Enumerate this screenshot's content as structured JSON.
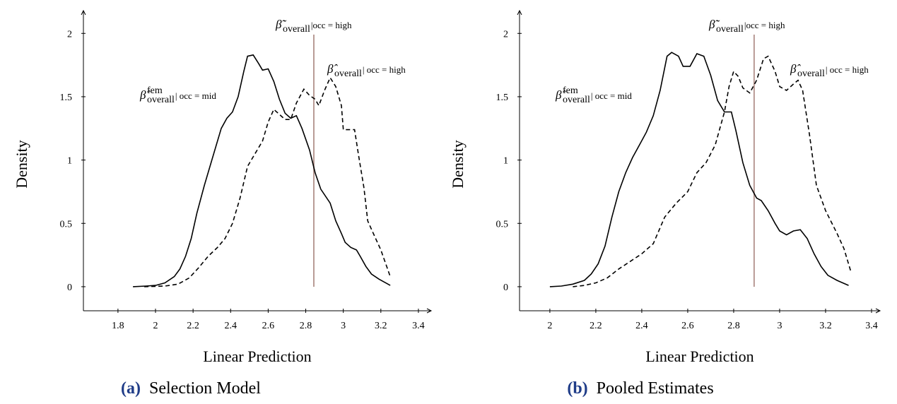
{
  "chart_data": [
    {
      "type": "line",
      "caption": {
        "label": "(a)",
        "text": "Selection Model"
      },
      "xlabel": "Linear Prediction",
      "ylabel": "Density",
      "xlim": [
        1.616,
        3.468
      ],
      "ylim": [
        -0.19,
        2.18
      ],
      "xticks": [
        1.8,
        2,
        2.2,
        2.4,
        2.6,
        2.8,
        3,
        3.2,
        3.4
      ],
      "yticks": [
        0,
        0.5,
        1,
        1.5,
        2
      ],
      "vline": {
        "x": 2.843,
        "color": "#b89a94"
      },
      "annotations": [
        {
          "symbol": "β̂",
          "sup": "fem",
          "sub": "overall",
          "condition": "| occ = mid"
        },
        {
          "symbol": "β̃̃",
          "sub": "overall",
          "condition": "|occ = high"
        },
        {
          "symbol": "β̂",
          "sub": "overall",
          "condition": "| occ = high"
        }
      ],
      "series": [
        {
          "style": "solid",
          "color": "#000000",
          "x": [
            1.88,
            1.95,
            2.0,
            2.05,
            2.1,
            2.13,
            2.16,
            2.19,
            2.22,
            2.26,
            2.3,
            2.35,
            2.38,
            2.41,
            2.44,
            2.47,
            2.49,
            2.52,
            2.55,
            2.57,
            2.6,
            2.63,
            2.66,
            2.69,
            2.72,
            2.75,
            2.78,
            2.82,
            2.85,
            2.88,
            2.93,
            2.96,
            2.99,
            3.01,
            3.04,
            3.07,
            3.09,
            3.12,
            3.15,
            3.19,
            3.25
          ],
          "values": [
            0,
            0.005,
            0.01,
            0.03,
            0.08,
            0.14,
            0.24,
            0.38,
            0.58,
            0.8,
            1.0,
            1.25,
            1.33,
            1.38,
            1.5,
            1.7,
            1.82,
            1.83,
            1.76,
            1.71,
            1.72,
            1.62,
            1.48,
            1.37,
            1.33,
            1.35,
            1.25,
            1.08,
            0.9,
            0.77,
            0.66,
            0.52,
            0.42,
            0.35,
            0.31,
            0.29,
            0.24,
            0.16,
            0.1,
            0.06,
            0.01
          ]
        },
        {
          "style": "dashed",
          "color": "#000000",
          "x": [
            1.94,
            2.05,
            2.12,
            2.18,
            2.23,
            2.28,
            2.33,
            2.37,
            2.41,
            2.45,
            2.49,
            2.53,
            2.57,
            2.6,
            2.63,
            2.66,
            2.69,
            2.72,
            2.75,
            2.79,
            2.82,
            2.85,
            2.87,
            2.9,
            2.93,
            2.96,
            2.99,
            3.0,
            3.03,
            3.06,
            3.08,
            3.11,
            3.13,
            3.16,
            3.2,
            3.25
          ],
          "values": [
            0,
            0.005,
            0.02,
            0.07,
            0.15,
            0.24,
            0.31,
            0.38,
            0.5,
            0.7,
            0.95,
            1.05,
            1.15,
            1.3,
            1.4,
            1.36,
            1.32,
            1.32,
            1.45,
            1.56,
            1.51,
            1.48,
            1.43,
            1.55,
            1.65,
            1.58,
            1.43,
            1.24,
            1.24,
            1.24,
            1.05,
            0.78,
            0.52,
            0.42,
            0.29,
            0.08
          ]
        }
      ]
    },
    {
      "type": "line",
      "caption": {
        "label": "(b)",
        "text": "Pooled Estimates"
      },
      "xlabel": "Linear Prediction",
      "ylabel": "Density",
      "xlim": [
        1.868,
        3.437
      ],
      "ylim": [
        -0.19,
        2.18
      ],
      "xticks": [
        2,
        2.2,
        2.4,
        2.6,
        2.8,
        3,
        3.2,
        3.4
      ],
      "yticks": [
        0,
        0.5,
        1,
        1.5,
        2
      ],
      "vline": {
        "x": 2.889,
        "color": "#b89a94"
      },
      "annotations": [
        {
          "symbol": "β̂",
          "sup": "fem",
          "sub": "overall",
          "condition": "| occ = mid"
        },
        {
          "symbol": "β̃̃",
          "sub": "overall",
          "condition": "|occ = high"
        },
        {
          "symbol": "β̂",
          "sub": "overall",
          "condition": "| occ = high"
        }
      ],
      "series": [
        {
          "style": "solid",
          "color": "#000000",
          "x": [
            2.0,
            2.05,
            2.1,
            2.15,
            2.18,
            2.21,
            2.24,
            2.27,
            2.3,
            2.33,
            2.36,
            2.39,
            2.42,
            2.45,
            2.48,
            2.51,
            2.53,
            2.56,
            2.58,
            2.61,
            2.64,
            2.67,
            2.7,
            2.73,
            2.76,
            2.79,
            2.81,
            2.84,
            2.87,
            2.9,
            2.92,
            2.95,
            2.98,
            3.0,
            3.03,
            3.06,
            3.09,
            3.12,
            3.15,
            3.18,
            3.21,
            3.25,
            3.3
          ],
          "values": [
            0,
            0.005,
            0.02,
            0.05,
            0.1,
            0.18,
            0.32,
            0.55,
            0.75,
            0.9,
            1.02,
            1.12,
            1.22,
            1.35,
            1.55,
            1.82,
            1.85,
            1.82,
            1.74,
            1.74,
            1.84,
            1.82,
            1.67,
            1.47,
            1.38,
            1.38,
            1.23,
            0.98,
            0.8,
            0.7,
            0.68,
            0.6,
            0.5,
            0.44,
            0.41,
            0.44,
            0.45,
            0.38,
            0.26,
            0.16,
            0.09,
            0.05,
            0.01
          ]
        },
        {
          "style": "dashed",
          "color": "#000000",
          "x": [
            2.1,
            2.15,
            2.2,
            2.25,
            2.3,
            2.35,
            2.4,
            2.45,
            2.5,
            2.55,
            2.6,
            2.64,
            2.68,
            2.72,
            2.76,
            2.78,
            2.8,
            2.82,
            2.84,
            2.87,
            2.9,
            2.93,
            2.95,
            2.98,
            3.0,
            3.03,
            3.06,
            3.08,
            3.1,
            3.13,
            3.16,
            3.2,
            3.25,
            3.28,
            3.31
          ],
          "values": [
            0,
            0.01,
            0.03,
            0.07,
            0.14,
            0.2,
            0.26,
            0.34,
            0.55,
            0.66,
            0.75,
            0.9,
            0.98,
            1.12,
            1.38,
            1.58,
            1.7,
            1.66,
            1.57,
            1.53,
            1.63,
            1.8,
            1.82,
            1.7,
            1.58,
            1.55,
            1.6,
            1.63,
            1.55,
            1.2,
            0.8,
            0.6,
            0.42,
            0.3,
            0.12
          ]
        }
      ]
    }
  ]
}
